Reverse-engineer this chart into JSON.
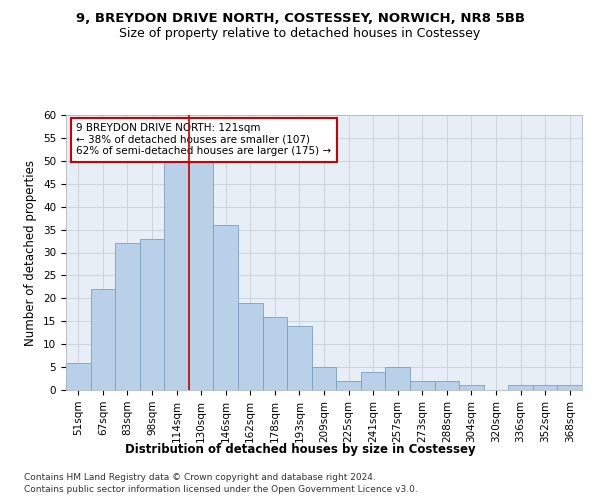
{
  "title1": "9, BREYDON DRIVE NORTH, COSTESSEY, NORWICH, NR8 5BB",
  "title2": "Size of property relative to detached houses in Costessey",
  "xlabel": "Distribution of detached houses by size in Costessey",
  "ylabel": "Number of detached properties",
  "categories": [
    "51sqm",
    "67sqm",
    "83sqm",
    "98sqm",
    "114sqm",
    "130sqm",
    "146sqm",
    "162sqm",
    "178sqm",
    "193sqm",
    "209sqm",
    "225sqm",
    "241sqm",
    "257sqm",
    "273sqm",
    "288sqm",
    "304sqm",
    "320sqm",
    "336sqm",
    "352sqm",
    "368sqm"
  ],
  "values": [
    6,
    22,
    32,
    33,
    50,
    50,
    36,
    19,
    16,
    14,
    5,
    2,
    4,
    5,
    2,
    2,
    1,
    0,
    1,
    1,
    1
  ],
  "bar_color": "#b8d0e8",
  "bar_edge_color": "#7aA0c0",
  "vline_x": 4.5,
  "vline_color": "#cc0000",
  "annotation_text": "9 BREYDON DRIVE NORTH: 121sqm\n← 38% of detached houses are smaller (107)\n62% of semi-detached houses are larger (175) →",
  "annotation_box_color": "white",
  "annotation_box_edge": "#cc0000",
  "ylim": [
    0,
    60
  ],
  "yticks": [
    0,
    5,
    10,
    15,
    20,
    25,
    30,
    35,
    40,
    45,
    50,
    55,
    60
  ],
  "grid_color": "#c8d0dc",
  "bg_color": "#e8eef6",
  "footer1": "Contains HM Land Registry data © Crown copyright and database right 2024.",
  "footer2": "Contains public sector information licensed under the Open Government Licence v3.0.",
  "title1_fontsize": 9.5,
  "title2_fontsize": 9,
  "axis_label_fontsize": 8.5,
  "tick_fontsize": 7.5,
  "annotation_fontsize": 7.5,
  "footer_fontsize": 6.5
}
